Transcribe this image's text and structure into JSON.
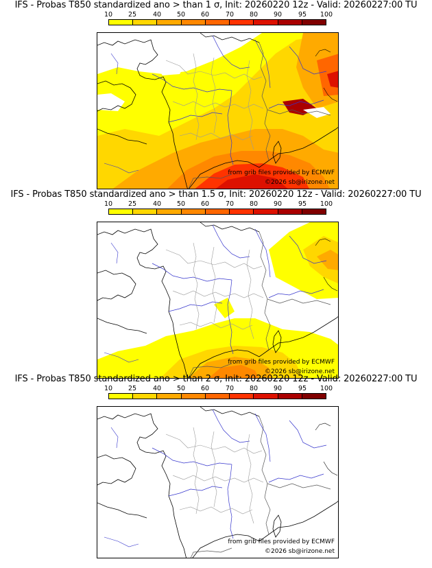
{
  "panels": [
    {
      "title": "IFS - Probas T850  standardized ano > than 1 σ, Init: 20260220 12z - Valid: 20260227:00 TU",
      "threshold": "1 σ",
      "credit_source": "from grib files provided by ECMWF",
      "credit_copyright": "©2026 sb@irizone.net"
    },
    {
      "title": "IFS - Probas T850  standardized ano > than 1.5 σ, Init: 20260220 12z - Valid: 20260227:00 TU",
      "threshold": "1.5 σ",
      "credit_source": "from grib files provided by ECMWF",
      "credit_copyright": "©2026 sb@irizone.net"
    },
    {
      "title": "IFS - Probas T850  standardized ano > than 2 σ, Init: 20260220 12z - Valid: 20260227:00 TU",
      "threshold": "2 σ",
      "credit_source": "from grib files provided by ECMWF",
      "credit_copyright": "©2026 sb@irizone.net"
    }
  ],
  "legend": {
    "labels": [
      "10",
      "25",
      "40",
      "50",
      "60",
      "70",
      "80",
      "90",
      "95",
      "100"
    ],
    "colors": [
      "#ffff00",
      "#ffd700",
      "#ffaa00",
      "#ff8800",
      "#ff6600",
      "#ff3300",
      "#dd1100",
      "#aa0000",
      "#800000"
    ]
  },
  "colors": {
    "border": "#000000",
    "rivers": "#3333cc",
    "admin": "#999999"
  }
}
